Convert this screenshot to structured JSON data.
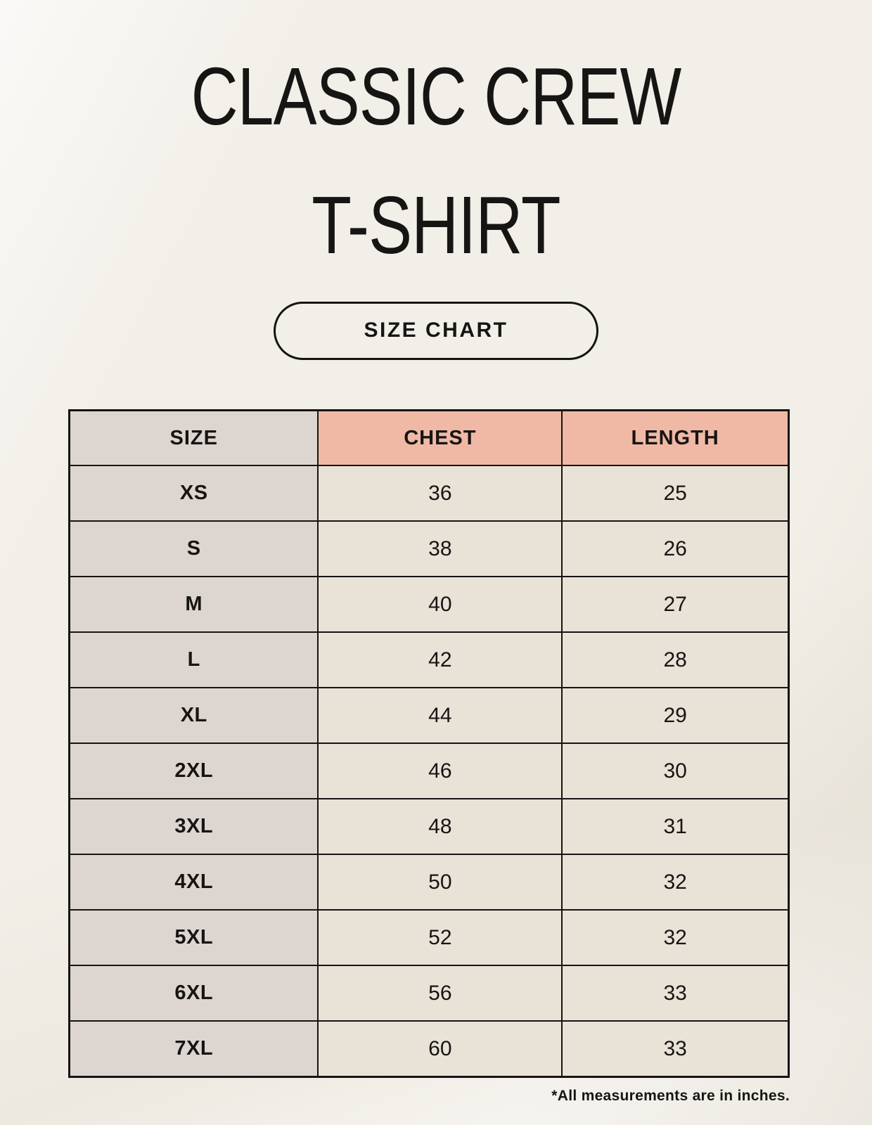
{
  "header": {
    "title_line1": "CLASSIC CREW",
    "title_line2": "T-SHIRT",
    "size_chart_button": "SIZE CHART"
  },
  "footnote": "*All measurements are in inches.",
  "colors": {
    "background": "#f2efe8",
    "header_accent": "#f0b9a6",
    "size_col": "#ddd6d0",
    "data_cell": "#e9e2d7",
    "border": "#151413",
    "text": "#161513"
  },
  "chart_data": {
    "type": "table",
    "title": "Classic Crew T-Shirt Size Chart",
    "units": "inches",
    "columns": [
      "SIZE",
      "CHEST",
      "LENGTH"
    ],
    "rows": [
      [
        "XS",
        "36",
        "25"
      ],
      [
        "S",
        "38",
        "26"
      ],
      [
        "M",
        "40",
        "27"
      ],
      [
        "L",
        "42",
        "28"
      ],
      [
        "XL",
        "44",
        "29"
      ],
      [
        "2XL",
        "46",
        "30"
      ],
      [
        "3XL",
        "48",
        "31"
      ],
      [
        "4XL",
        "50",
        "32"
      ],
      [
        "5XL",
        "52",
        "32"
      ],
      [
        "6XL",
        "56",
        "33"
      ],
      [
        "7XL",
        "60",
        "33"
      ]
    ]
  }
}
